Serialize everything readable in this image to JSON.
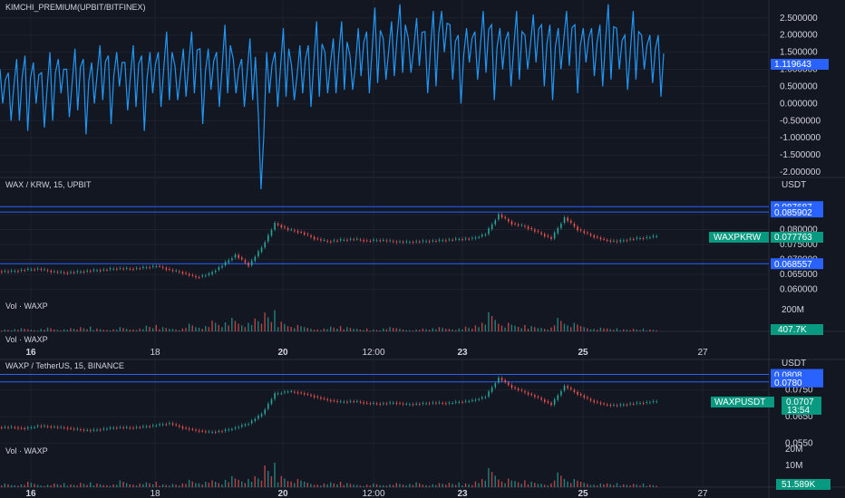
{
  "chart_data": [
    {
      "type": "line",
      "title": "KIMCHI_PREMIUM(UPBIT/BITFINEX)",
      "yticks": [
        "2.500000",
        "2.000000",
        "1.500000",
        "1.000000",
        "0.500000",
        "0.000000",
        "-0.500000",
        "-1.000000",
        "-1.500000",
        "-2.000000"
      ],
      "ylim": [
        -2.0,
        2.6
      ],
      "last_value": "1.119643",
      "color": "#2962ff",
      "series": [
        {
          "values": [
            0.5,
            0.2,
            0.4,
            0.3,
            0.6,
            0.1,
            0.5,
            0.8,
            0.3,
            0.7,
            0.2,
            0.6,
            0.9,
            0.4,
            1.0,
            0.5,
            0.8,
            0.3,
            0.9,
            0.7,
            1.1,
            0.6,
            0.9,
            1.2,
            0.5,
            1.0,
            0.7,
            1.3,
            0.8,
            0.6,
            1.0,
            -1.4,
            0.9,
            0.7,
            1.2,
            0.6,
            1.0,
            0.8,
            1.3,
            0.9,
            1.1,
            1.4,
            0.9,
            1.5,
            1.2,
            1.7,
            1.3,
            1.6,
            1.9,
            1.4,
            1.8,
            1.2,
            1.6,
            2.1,
            1.5,
            1.0,
            1.7,
            1.4,
            1.8,
            1.2,
            1.6,
            1.3,
            1.7,
            1.5,
            1.9,
            1.4,
            1.2,
            1.6,
            1.9,
            1.3,
            1.7,
            1.5,
            1.4,
            1.8,
            1.6,
            1.2,
            1.7,
            1.5,
            1.3,
            1.1
          ]
        }
      ]
    },
    {
      "type": "candlestick",
      "title": "WAX / KRW, 15, UPBIT",
      "yticks": [
        "0.085000",
        "0.080000",
        "0.075000",
        "0.070000",
        "0.065000",
        "0.060000"
      ],
      "ylim": [
        0.058,
        0.092
      ],
      "unit": "USDT",
      "hlines": [
        "0.087687",
        "0.085902",
        "0.068557"
      ],
      "last_label": "WAXPKRW",
      "last_value": "0.077763",
      "values": [
        0.066,
        0.0665,
        0.0668,
        0.066,
        0.0655,
        0.0658,
        0.0662,
        0.0665,
        0.067,
        0.0668,
        0.0672,
        0.0678,
        0.0665,
        0.0655,
        0.064,
        0.065,
        0.068,
        0.0715,
        0.068,
        0.074,
        0.082,
        0.08,
        0.079,
        0.077,
        0.076,
        0.0765,
        0.0768,
        0.0762,
        0.0765,
        0.076,
        0.0758,
        0.076,
        0.0762,
        0.0765,
        0.0768,
        0.077,
        0.0785,
        0.085,
        0.082,
        0.081,
        0.079,
        0.077,
        0.084,
        0.08,
        0.078,
        0.0765,
        0.076,
        0.0768,
        0.0772,
        0.0778
      ]
    },
    {
      "type": "bar",
      "title": "Vol · WAXP",
      "yticks": [
        "200M"
      ],
      "last_value": "407.7K",
      "values": [
        2,
        3,
        2,
        4,
        2,
        3,
        5,
        3,
        2,
        4,
        3,
        6,
        4,
        3,
        8,
        5,
        10,
        14,
        8,
        12,
        22,
        10,
        6,
        4,
        3,
        5,
        4,
        3,
        2,
        4,
        3,
        2,
        3,
        4,
        3,
        5,
        8,
        18,
        9,
        6,
        5,
        4,
        14,
        8,
        5,
        4,
        3,
        2,
        3,
        2
      ]
    },
    {
      "type": "candlestick",
      "title": "WAXP / TetherUS, 15, BINANCE",
      "yticks": [
        "0.0750",
        "0.0650",
        "0.0550"
      ],
      "ylim": [
        0.0535,
        0.082
      ],
      "unit": "USDT",
      "hlines": [
        "0.0808",
        "0.0780"
      ],
      "last_label": "WAXPUSDT",
      "last_value": "0.0707",
      "countdown": "13:54",
      "values": [
        0.061,
        0.0605,
        0.0615,
        0.0612,
        0.0608,
        0.0602,
        0.0598,
        0.0604,
        0.061,
        0.0608,
        0.0612,
        0.0618,
        0.0625,
        0.0608,
        0.0598,
        0.0592,
        0.0596,
        0.0608,
        0.0625,
        0.066,
        0.0735,
        0.0745,
        0.0738,
        0.0725,
        0.0712,
        0.0705,
        0.0708,
        0.07,
        0.0698,
        0.0702,
        0.0696,
        0.0698,
        0.0702,
        0.07,
        0.0705,
        0.071,
        0.0725,
        0.0795,
        0.076,
        0.074,
        0.072,
        0.0695,
        0.0765,
        0.0735,
        0.071,
        0.0695,
        0.0692,
        0.0698,
        0.0702,
        0.0707
      ]
    },
    {
      "type": "bar",
      "title": "Vol · WAXP",
      "yticks": [
        "20M",
        "10M"
      ],
      "last_value": "51.589K",
      "values": [
        3,
        2,
        4,
        2,
        3,
        2,
        4,
        3,
        2,
        5,
        3,
        4,
        2,
        3,
        6,
        4,
        5,
        9,
        6,
        8,
        20,
        9,
        6,
        4,
        3,
        4,
        3,
        2,
        3,
        2,
        3,
        4,
        2,
        3,
        4,
        3,
        6,
        14,
        7,
        5,
        4,
        3,
        12,
        6,
        4,
        3,
        3,
        2,
        3,
        2
      ]
    }
  ],
  "x_axis": {
    "labels": [
      {
        "text": "16",
        "bold": true
      },
      {
        "text": "18",
        "bold": false
      },
      {
        "text": "20",
        "bold": true
      },
      {
        "text": "12:00",
        "bold": false
      },
      {
        "text": "23",
        "bold": true
      },
      {
        "text": "25",
        "bold": true
      },
      {
        "text": "27",
        "bold": false
      }
    ]
  },
  "colors": {
    "up": "#26a69a",
    "down": "#ef5350",
    "line": "#2196f3",
    "hline": "#2962ff",
    "bg": "#131722",
    "grid": "#1e222d",
    "tag_green": "#089981",
    "tag_blue": "#2962ff"
  }
}
